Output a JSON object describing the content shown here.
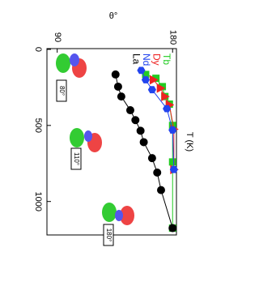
{
  "chart_data": {
    "type": "line",
    "title": "θ°",
    "x_label": "T (K)",
    "xlim": [
      -5,
      1220
    ],
    "xticks": [
      0,
      500,
      1000
    ],
    "ylim": [
      82,
      183
    ],
    "yticks": [
      90,
      180
    ],
    "legend": "top-right",
    "series": [
      {
        "name": "Tb",
        "color": "#22cc22",
        "marker": "square",
        "x": [
          165,
          190,
          245,
          310,
          360,
          500,
          740,
          1175
        ],
        "values": [
          159,
          167,
          172,
          174,
          177.5,
          180,
          180,
          180
        ]
      },
      {
        "name": "Dy",
        "color": "#ee2222",
        "marker": "triangle",
        "x": [
          200,
          255,
          310,
          365,
          525,
          790
        ],
        "values": [
          165,
          170.5,
          174,
          177.5,
          181,
          181
        ]
      },
      {
        "name": "Nd",
        "color": "#2244ee",
        "marker": "hexagon",
        "x": [
          138,
          200,
          265,
          390,
          530,
          790
        ],
        "values": [
          155.5,
          159,
          164,
          175.5,
          180,
          181
        ]
      },
      {
        "name": "La",
        "color": "#000000",
        "marker": "circle",
        "x": [
          165,
          245,
          310,
          400,
          465,
          535,
          610,
          715,
          810,
          925,
          1175
        ],
        "values": [
          135.5,
          137.5,
          140,
          147,
          151,
          155,
          157.5,
          164,
          168,
          171,
          180
        ]
      }
    ],
    "annotations": [
      "80°",
      "110°",
      "180°"
    ]
  }
}
